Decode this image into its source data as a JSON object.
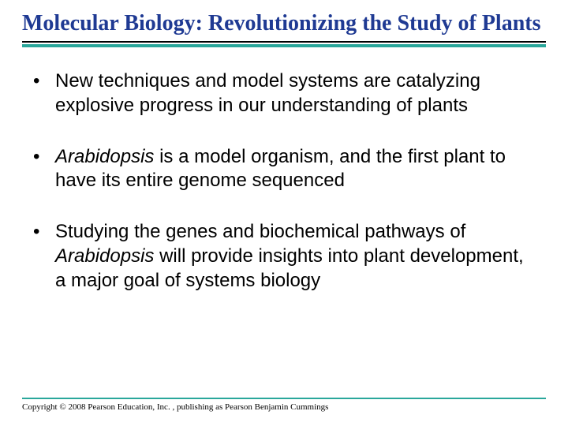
{
  "title": "Molecular Biology: Revolutionizing the Study of Plants",
  "title_color": "#1f3a93",
  "title_fontsize": 28,
  "title_font": "Times New Roman",
  "title_rule_dark_color": "#000000",
  "title_rule_teal_color": "#2aa79b",
  "body_fontsize": 24,
  "body_color": "#000000",
  "bullets": {
    "b1": "New techniques and model systems are catalyzing explosive progress in our understanding of plants",
    "b2_pre": "",
    "b2_italic": "Arabidopsis",
    "b2_post": " is a model organism, and the first plant to have its entire genome sequenced",
    "b3_pre": "Studying the genes and biochemical pathways of ",
    "b3_italic": "Arabidopsis",
    "b3_post": " will provide insights into plant development, a major goal of systems biology"
  },
  "footer_rule_color": "#2aa79b",
  "copyright": "Copyright © 2008 Pearson Education, Inc. , publishing as Pearson Benjamin Cummings",
  "copyright_fontsize": 11,
  "background_color": "#ffffff",
  "slide_width": 720,
  "slide_height": 540
}
